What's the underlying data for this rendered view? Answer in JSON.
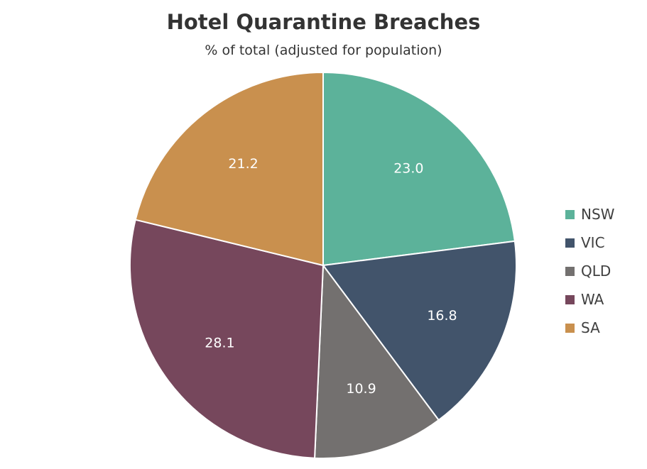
{
  "chart_data": {
    "type": "pie",
    "title": "Hotel Quarantine Breaches",
    "subtitle": "% of total (adjusted for population)",
    "categories": [
      "NSW",
      "VIC",
      "QLD",
      "WA",
      "SA"
    ],
    "values": [
      23.0,
      16.8,
      10.9,
      28.1,
      21.2
    ],
    "data_labels": [
      "23.0",
      "16.8",
      "10.9",
      "28.1",
      "21.2"
    ],
    "colors": [
      "#5cb29a",
      "#42546b",
      "#73706f",
      "#76475c",
      "#c9904e"
    ],
    "label_color": "#ffffff",
    "legend_position": "right",
    "start_angle": "top",
    "direction": "clockwise"
  }
}
